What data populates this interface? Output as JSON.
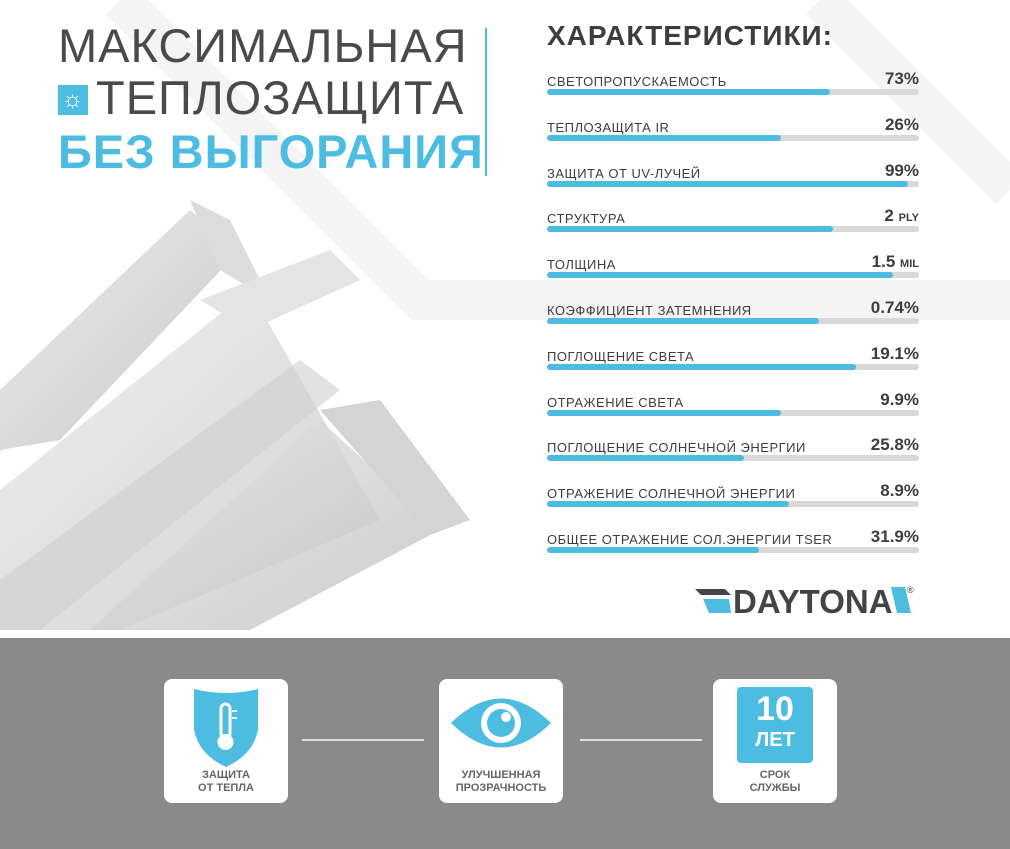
{
  "header": {
    "line1": "МАКСИМАЛЬНАЯ",
    "line2": "ТЕПЛОЗАЩИТА",
    "line3": "БЕЗ ВЫГОРАНИЯ",
    "icon": "sun-icon"
  },
  "specs": {
    "title": "ХАРАКТЕРИСТИКИ:",
    "items": [
      {
        "label": "СВЕТОПРОПУСКАЕМОСТЬ",
        "value": "73%",
        "unit": "",
        "fill": 0.76
      },
      {
        "label": "ТЕПЛОЗАЩИТА IR",
        "value": "26%",
        "unit": "",
        "fill": 0.63
      },
      {
        "label": "ЗАЩИТА ОТ UV-ЛУЧЕЙ",
        "value": "99%",
        "unit": "",
        "fill": 0.97
      },
      {
        "label": "СТРУКТУРА",
        "value": "2",
        "unit": "PLY",
        "fill": 0.77
      },
      {
        "label": "ТОЛЩИНА",
        "value": "1.5",
        "unit": "MIL",
        "fill": 0.93
      },
      {
        "label": "КОЭФФИЦИЕНТ ЗАТЕМНЕНИЯ",
        "value": "0.74%",
        "unit": "",
        "fill": 0.73
      },
      {
        "label": "ПОГЛОЩЕНИЕ СВЕТА",
        "value": "19.1%",
        "unit": "",
        "fill": 0.83
      },
      {
        "label": "ОТРАЖЕНИЕ СВЕТА",
        "value": "9.9%",
        "unit": "",
        "fill": 0.63
      },
      {
        "label": "ПОГЛОЩЕНИЕ СОЛНЕЧНОЙ ЭНЕРГИИ",
        "value": "25.8%",
        "unit": "",
        "fill": 0.53
      },
      {
        "label": "ОТРАЖЕНИЕ СОЛНЕЧНОЙ ЭНЕРГИИ",
        "value": "8.9%",
        "unit": "",
        "fill": 0.65
      },
      {
        "label": "ОБЩЕЕ ОТРАЖЕНИЕ СОЛ.ЭНЕРГИИ TSER",
        "value": "31.9%",
        "unit": "",
        "fill": 0.57
      }
    ]
  },
  "brand": {
    "name": "DAYTONA",
    "mark": "®"
  },
  "features": [
    {
      "caption1": "ЗАЩИТА",
      "caption2": "ОТ ТЕПЛА",
      "icon": "thermometer-shield-icon"
    },
    {
      "caption1": "УЛУЧШЕННАЯ",
      "caption2": "ПРОЗРАЧНОСТЬ",
      "icon": "eye-icon"
    },
    {
      "caption1": "СРОК",
      "caption2": "СЛУЖБЫ",
      "icon": "calendar-years-icon",
      "years": "10",
      "years_unit": "ЛЕТ"
    }
  ],
  "colors": {
    "accent": "#4cbde0",
    "text": "#444444",
    "band": "#8a8a8a",
    "track": "#d9d9d9"
  }
}
